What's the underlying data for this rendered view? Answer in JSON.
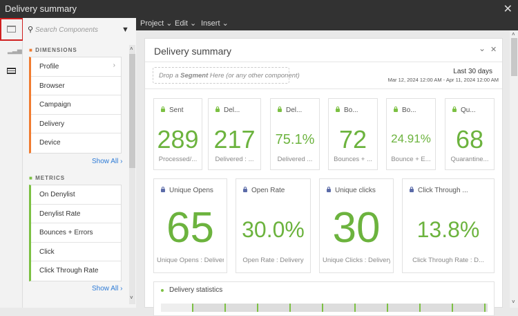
{
  "window": {
    "title": "Delivery summary"
  },
  "menu": [
    "Project",
    "Edit",
    "Insert"
  ],
  "sidebar": {
    "search_placeholder": "Search Components",
    "dimensions_label": "DIMENSIONS",
    "dimensions": [
      "Profile",
      "Browser",
      "Campaign",
      "Delivery",
      "Device"
    ],
    "metrics_label": "METRICS",
    "metrics": [
      "On Denylist",
      "Denylist Rate",
      "Bounces + Errors",
      "Click",
      "Click Through Rate"
    ],
    "show_all": "Show All"
  },
  "panel": {
    "title": "Delivery summary",
    "segment_drop": "Drop a Segment Here (or any other component)",
    "segment_bold": "Segment",
    "date_range_label": "Last 30 days",
    "date_range": "Mar 12, 2024 12:00 AM - Apr 11, 2024 12:00 AM",
    "cards_row1": [
      {
        "title": "Sent",
        "value": "289",
        "sub": "Processed/..."
      },
      {
        "title": "Del...",
        "value": "217",
        "sub": "Delivered : ..."
      },
      {
        "title": "Del...",
        "value": "75.1%",
        "sub": "Delivered ..."
      },
      {
        "title": "Bo...",
        "value": "72",
        "sub": "Bounces + ..."
      },
      {
        "title": "Bo...",
        "value": "24.91%",
        "sub": "Bounce + E..."
      },
      {
        "title": "Qu...",
        "value": "68",
        "sub": "Quarantine..."
      }
    ],
    "cards_row2": [
      {
        "title": "Unique Opens",
        "value": "65",
        "sub": "Unique Opens : Delivery"
      },
      {
        "title": "Open Rate",
        "value": "30.0%",
        "sub": "Open Rate : Delivery"
      },
      {
        "title": "Unique clicks",
        "value": "30",
        "sub": "Unique Clicks : Delivery"
      },
      {
        "title": "Click Through ...",
        "value": "13.8%",
        "sub": "Click Through Rate : D..."
      }
    ],
    "stats_title": "Delivery statistics"
  },
  "colors": {
    "accent_green": "#6cb33e",
    "dimension": "#f07c30",
    "metric": "#7cc043",
    "link": "#2d7bd6"
  }
}
